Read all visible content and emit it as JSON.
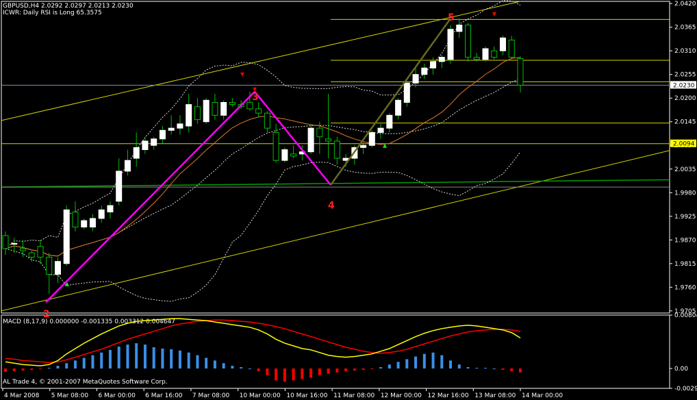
{
  "header": {
    "symbol_line": "GBPUSD,H4  2.0292 2.0297 2.0213 2.0230",
    "indicator_line": "ICWR: Daily RSI is Long 65.3575",
    "macd_line": "MACD  (8,17,9) 0.000000 -0.001335 0.003312 0.004647",
    "copyright": "AL Trade 4, © 2001-2007 MetaQuotes Software Corp."
  },
  "colors": {
    "background": "#000000",
    "grid_frame": "#ffffff",
    "bull_candle": "#ffffff",
    "bear_candle": "#000000",
    "zigzag": "#ff00ff",
    "channel": "#d4d400",
    "green_line": "#00a000",
    "macd_pos": "#3a8fe8",
    "macd_neg": "#ff0000",
    "macd_fast": "#ffff00",
    "macd_slow": "#ff0000",
    "arrow_up": "#00ff00",
    "arrow_down": "#ff0000",
    "ma_orange": "#e07a2a"
  },
  "chart_data": [
    {
      "type": "candlestick",
      "title": "GBPUSD,H4",
      "ylim": [
        1.97,
        2.0425
      ],
      "yticks": [
        "2.0420",
        "2.0365",
        "2.0310",
        "2.0255",
        "2.0200",
        "2.0145",
        "2.0090",
        "2.0035",
        "1.9980",
        "1.9925",
        "1.9870",
        "1.9815",
        "1.9760",
        "1.9705"
      ],
      "price_labels": {
        "current": "2.0230",
        "marked": "2.0094"
      },
      "xticks": [
        "4 Mar 2008",
        "5 Mar 08:00",
        "6 Mar 00:00",
        "6 Mar 16:00",
        "7 Mar 08:00",
        "10 Mar 00:00",
        "10 Mar 16:00",
        "11 Mar 08:00",
        "12 Mar 00:00",
        "12 Mar 16:00",
        "13 Mar 08:00",
        "14 Mar 00:00"
      ],
      "candles": [
        [
          1.988,
          1.989,
          1.9835,
          1.985
        ],
        [
          1.986,
          1.9875,
          1.984,
          1.9862
        ],
        [
          1.985,
          1.987,
          1.983,
          1.9845
        ],
        [
          1.984,
          1.9845,
          1.982,
          1.983
        ],
        [
          1.9855,
          1.987,
          1.9815,
          1.983
        ],
        [
          1.983,
          1.984,
          1.9745,
          1.979
        ],
        [
          1.979,
          1.983,
          1.977,
          1.982
        ],
        [
          1.9815,
          1.995,
          1.981,
          1.994
        ],
        [
          1.9935,
          1.996,
          1.989,
          1.99
        ],
        [
          1.99,
          1.992,
          1.9895,
          1.9915
        ],
        [
          1.99,
          1.993,
          1.989,
          1.992
        ],
        [
          1.992,
          1.995,
          1.991,
          1.994
        ],
        [
          1.9935,
          1.996,
          1.992,
          1.995
        ],
        [
          1.996,
          2.006,
          1.995,
          2.003
        ],
        [
          2.003,
          2.008,
          2.002,
          2.0055
        ],
        [
          2.006,
          2.012,
          2.004,
          2.0085
        ],
        [
          2.008,
          2.011,
          2.007,
          2.01
        ],
        [
          2.009,
          2.011,
          2.008,
          2.0105
        ],
        [
          2.0105,
          2.0135,
          2.0095,
          2.0125
        ],
        [
          2.0125,
          2.016,
          2.0115,
          2.013
        ],
        [
          2.013,
          2.016,
          2.0115,
          2.014
        ],
        [
          2.0135,
          2.021,
          2.012,
          2.0185
        ],
        [
          2.018,
          2.02,
          2.014,
          2.015
        ],
        [
          2.0145,
          2.02,
          2.014,
          2.0195
        ],
        [
          2.019,
          2.021,
          2.015,
          2.016
        ],
        [
          2.016,
          2.0195,
          2.015,
          2.019
        ],
        [
          2.019,
          2.02,
          2.018,
          2.0185
        ],
        [
          2.0185,
          2.0195,
          2.0175,
          2.018
        ],
        [
          2.019,
          2.0215,
          2.017,
          2.0175
        ],
        [
          2.0175,
          2.019,
          2.0155,
          2.0165
        ],
        [
          2.0165,
          2.017,
          2.012,
          2.013
        ],
        [
          2.012,
          2.014,
          2.005,
          2.0055
        ],
        [
          2.0055,
          2.0085,
          2.005,
          2.008
        ],
        [
          2.007,
          2.009,
          2.006,
          2.0065
        ],
        [
          2.007,
          2.009,
          2.0055,
          2.0075
        ],
        [
          2.0075,
          2.014,
          2.007,
          2.013
        ],
        [
          2.013,
          2.0145,
          2.007,
          2.011
        ],
        [
          2.0105,
          2.021,
          2.006,
          2.01
        ],
        [
          2.01,
          2.011,
          2.0045,
          2.006
        ],
        [
          2.0055,
          2.007,
          2.004,
          2.006
        ],
        [
          2.006,
          2.009,
          2.0045,
          2.0085
        ],
        [
          2.0085,
          2.01,
          2.007,
          2.009
        ],
        [
          2.009,
          2.0125,
          2.0085,
          2.012
        ],
        [
          2.012,
          2.014,
          2.0105,
          2.013
        ],
        [
          2.013,
          2.0165,
          2.012,
          2.016
        ],
        [
          2.016,
          2.02,
          2.015,
          2.0195
        ],
        [
          2.019,
          2.024,
          2.018,
          2.0235
        ],
        [
          2.0235,
          2.027,
          2.0225,
          2.0255
        ],
        [
          2.0255,
          2.028,
          2.0245,
          2.027
        ],
        [
          2.027,
          2.0295,
          2.0255,
          2.0285
        ],
        [
          2.0285,
          2.03,
          2.027,
          2.0295
        ],
        [
          2.029,
          2.037,
          2.028,
          2.036
        ],
        [
          2.0355,
          2.0385,
          2.034,
          2.037
        ],
        [
          2.037,
          2.0375,
          2.0285,
          2.0295
        ],
        [
          2.0295,
          2.0305,
          2.0285,
          2.029
        ],
        [
          2.029,
          2.032,
          2.0285,
          2.0315
        ],
        [
          2.031,
          2.032,
          2.029,
          2.0295
        ],
        [
          2.031,
          2.0345,
          2.03,
          2.034
        ],
        [
          2.0335,
          2.0345,
          2.029,
          2.0295
        ],
        [
          2.0292,
          2.0297,
          2.0213,
          2.023
        ]
      ],
      "wave_labels": [
        "2",
        "3",
        "4",
        "5"
      ],
      "zigzag_prices": [
        1.9725,
        2.0215,
        1.9998,
        2.0385
      ],
      "horizontal_levels": [
        2.0383,
        2.0288,
        2.0238,
        2.0142,
        2.0094,
        1.9993
      ]
    },
    {
      "type": "macd",
      "title": "MACD (8,17,9)",
      "ylim": [
        -0.00299,
        0.00804
      ],
      "yticks": [
        "0.00804",
        "0.00",
        "-0.00299"
      ],
      "histogram": [
        -0.0005,
        -0.0004,
        -0.0003,
        -0.0002,
        -0.0001,
        0.0001,
        0.0004,
        0.0008,
        0.0012,
        0.0016,
        0.002,
        0.0024,
        0.0028,
        0.0033,
        0.0036,
        0.0038,
        0.0036,
        0.0032,
        0.003,
        0.0029,
        0.0027,
        0.0024,
        0.002,
        0.0016,
        0.0012,
        0.0008,
        0.0004,
        0.0002,
        0.0,
        -0.0004,
        -0.001,
        -0.0018,
        -0.002,
        -0.0018,
        -0.0016,
        -0.0014,
        -0.001,
        -0.0008,
        -0.0006,
        -0.0004,
        -0.0003,
        -0.0002,
        -0.0001,
        0.0002,
        0.0006,
        0.001,
        0.0014,
        0.0018,
        0.0022,
        0.0024,
        0.002,
        0.0012,
        0.0006,
        0.0002,
        0.0001,
        0.0001,
        0.0,
        -0.0002,
        -0.0004,
        -0.0006
      ],
      "fast_line": [
        0.001,
        0.0008,
        0.0006,
        0.0005,
        0.0004,
        0.0006,
        0.0012,
        0.0022,
        0.003,
        0.0038,
        0.0045,
        0.0052,
        0.0058,
        0.0064,
        0.0068,
        0.0071,
        0.0072,
        0.0073,
        0.0074,
        0.0075,
        0.0075,
        0.0074,
        0.0073,
        0.0072,
        0.007,
        0.0068,
        0.0066,
        0.0064,
        0.0062,
        0.0058,
        0.0052,
        0.0044,
        0.0038,
        0.0034,
        0.003,
        0.0028,
        0.0024,
        0.002,
        0.0018,
        0.0017,
        0.0018,
        0.002,
        0.0022,
        0.0026,
        0.003,
        0.0036,
        0.0042,
        0.0048,
        0.0053,
        0.0057,
        0.006,
        0.0062,
        0.0064,
        0.0065,
        0.0064,
        0.0062,
        0.006,
        0.0058,
        0.0054,
        0.0046
      ],
      "slow_line": [
        0.0015,
        0.0014,
        0.0012,
        0.0011,
        0.001,
        0.0009,
        0.001,
        0.0013,
        0.0017,
        0.0021,
        0.0025,
        0.0029,
        0.0034,
        0.0039,
        0.0044,
        0.0048,
        0.0052,
        0.0056,
        0.006,
        0.0064,
        0.0067,
        0.0069,
        0.0071,
        0.0072,
        0.0073,
        0.0073,
        0.0072,
        0.0071,
        0.007,
        0.0068,
        0.0066,
        0.0063,
        0.006,
        0.0056,
        0.0052,
        0.0048,
        0.0044,
        0.004,
        0.0036,
        0.0032,
        0.0029,
        0.0026,
        0.0024,
        0.0023,
        0.0024,
        0.0026,
        0.0029,
        0.0033,
        0.0037,
        0.0041,
        0.0045,
        0.0049,
        0.0052,
        0.0055,
        0.0057,
        0.0058,
        0.0059,
        0.0059,
        0.0058,
        0.0056
      ]
    }
  ]
}
